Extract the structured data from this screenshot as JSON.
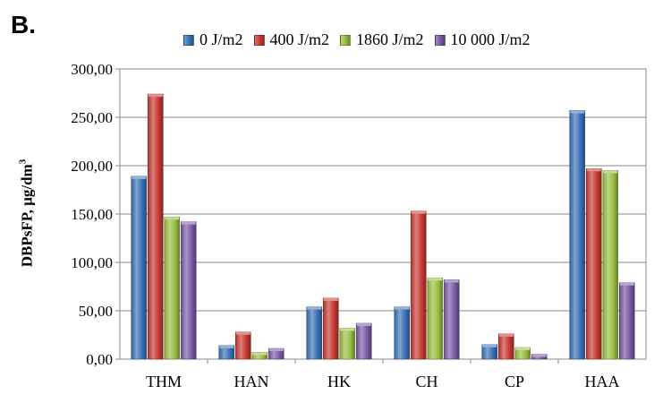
{
  "panel_label": "B.",
  "chart_data": {
    "type": "bar",
    "categories": [
      "THM",
      "HAN",
      "HK",
      "CH",
      "CP",
      "HAA"
    ],
    "series": [
      {
        "name": "0 J/m2",
        "color": "#3b73b9",
        "values": [
          189,
          14,
          54,
          54,
          15,
          257
        ]
      },
      {
        "name": "400 J/m2",
        "color": "#c93a35",
        "values": [
          274,
          28,
          63,
          153,
          26,
          197
        ]
      },
      {
        "name": "1860 J/m2",
        "color": "#9ac043",
        "values": [
          147,
          7,
          32,
          84,
          12,
          195
        ]
      },
      {
        "name": "10 000 J/m2",
        "color": "#7b5aa6",
        "values": [
          142,
          11,
          37,
          82,
          5,
          79
        ]
      }
    ],
    "ylabel": "DBPsFP, µg/dm",
    "ylabel_sup": "3",
    "ylim": [
      0,
      300
    ],
    "yticks": [
      0,
      50,
      100,
      150,
      200,
      250,
      300
    ],
    "ytick_labels": [
      "0,00",
      "50,00",
      "100,00",
      "150,00",
      "200,00",
      "250,00",
      "300,00"
    ],
    "grid": true,
    "legend_position": "top"
  }
}
